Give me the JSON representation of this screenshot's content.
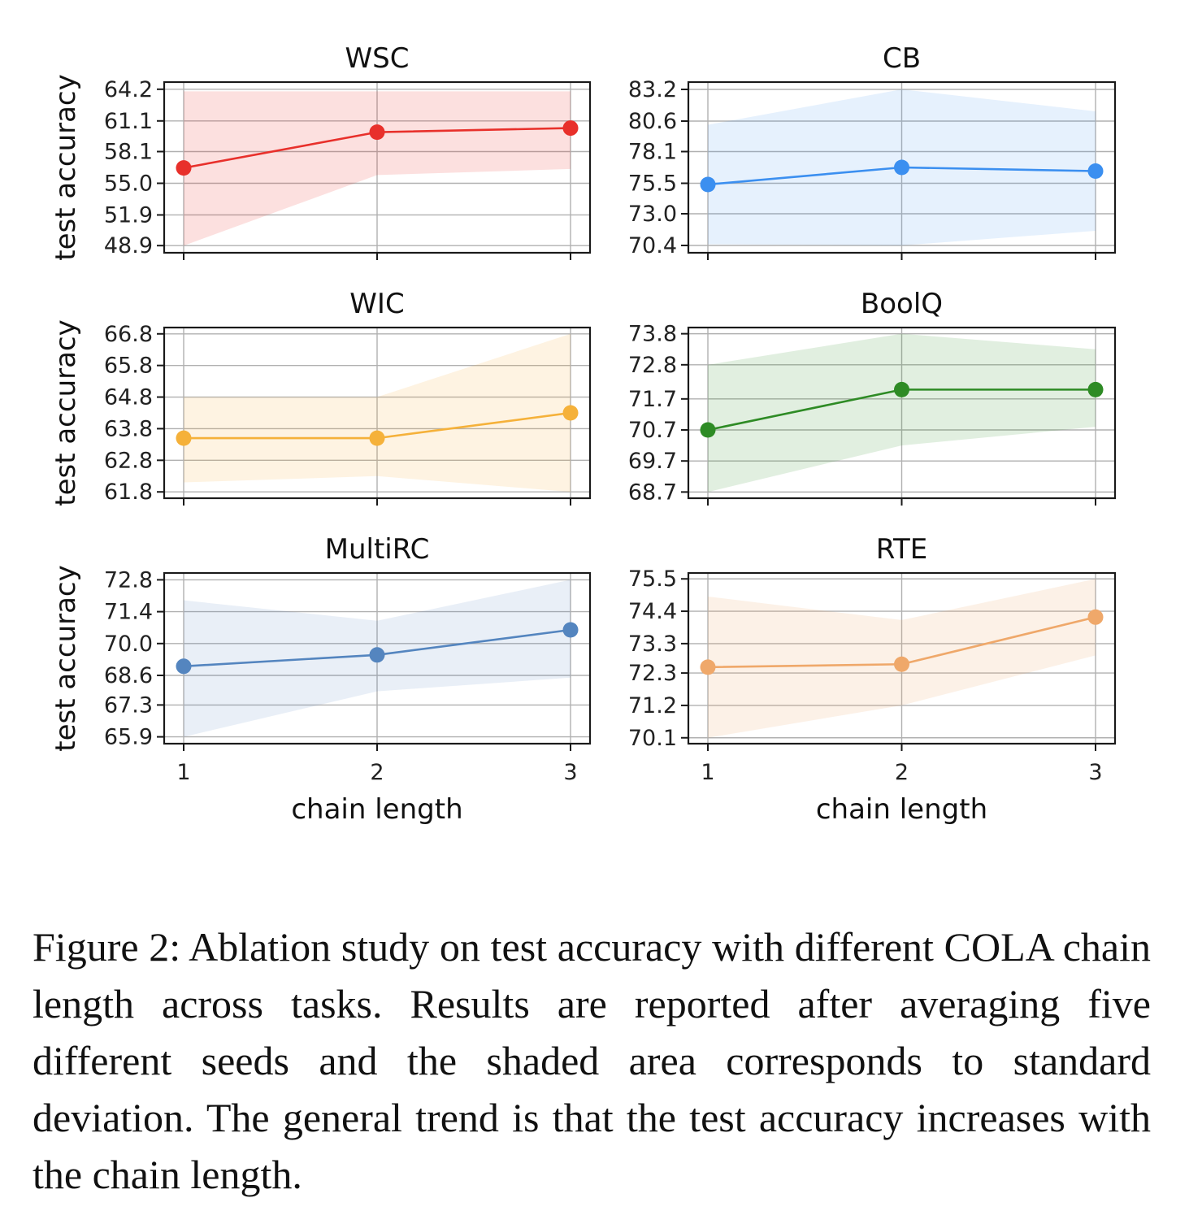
{
  "chart_data": [
    {
      "type": "line",
      "title": "WSC",
      "xlabel": "",
      "ylabel": "test accuracy",
      "x": [
        1,
        2,
        3
      ],
      "yticks": [
        "64.2",
        "61.1",
        "58.1",
        "55.0",
        "51.9",
        "48.9"
      ],
      "ylim": [
        48.2,
        64.9
      ],
      "series": [
        {
          "values": [
            56.5,
            60.0,
            60.4
          ],
          "lower": [
            48.9,
            55.8,
            56.4
          ],
          "upper": [
            64.0,
            64.0,
            64.0
          ]
        }
      ],
      "color": "#e8302b",
      "fill": "rgba(232,48,43,0.15)"
    },
    {
      "type": "line",
      "title": "CB",
      "xlabel": "",
      "ylabel": "",
      "x": [
        1,
        2,
        3
      ],
      "yticks": [
        "83.2",
        "80.6",
        "78.1",
        "75.5",
        "73.0",
        "70.4"
      ],
      "ylim": [
        69.8,
        83.8
      ],
      "series": [
        {
          "values": [
            75.4,
            76.8,
            76.5
          ],
          "lower": [
            70.5,
            70.4,
            71.6
          ],
          "upper": [
            80.3,
            83.2,
            81.4
          ]
        }
      ],
      "color": "#3b8ff0",
      "fill": "rgba(59,143,240,0.13)"
    },
    {
      "type": "line",
      "title": "WIC",
      "xlabel": "",
      "ylabel": "test accuracy",
      "x": [
        1,
        2,
        3
      ],
      "yticks": [
        "66.8",
        "65.8",
        "64.8",
        "63.8",
        "62.8",
        "61.8"
      ],
      "ylim": [
        61.6,
        67.0
      ],
      "series": [
        {
          "values": [
            63.5,
            63.5,
            64.3
          ],
          "lower": [
            62.1,
            62.3,
            61.8
          ],
          "upper": [
            64.8,
            64.8,
            66.8
          ]
        }
      ],
      "color": "#f5b13a",
      "fill": "rgba(245,177,58,0.15)"
    },
    {
      "type": "line",
      "title": "BoolQ",
      "xlabel": "",
      "ylabel": "",
      "x": [
        1,
        2,
        3
      ],
      "yticks": [
        "73.8",
        "72.8",
        "71.7",
        "70.7",
        "69.7",
        "68.7"
      ],
      "ylim": [
        68.5,
        74.0
      ],
      "series": [
        {
          "values": [
            70.7,
            72.0,
            72.0
          ],
          "lower": [
            68.7,
            70.2,
            70.8
          ],
          "upper": [
            72.8,
            73.8,
            73.3
          ]
        }
      ],
      "color": "#2e8b25",
      "fill": "rgba(46,139,37,0.14)"
    },
    {
      "type": "line",
      "title": "MultiRC",
      "xlabel": "chain length",
      "ylabel": "test accuracy",
      "x": [
        1,
        2,
        3
      ],
      "yticks": [
        "72.8",
        "71.4",
        "70.0",
        "68.6",
        "67.3",
        "65.9"
      ],
      "ylim": [
        65.6,
        73.1
      ],
      "series": [
        {
          "values": [
            69.0,
            69.5,
            70.6
          ],
          "lower": [
            65.9,
            67.9,
            68.5
          ],
          "upper": [
            71.9,
            71.0,
            72.8
          ]
        }
      ],
      "color": "#5485bf",
      "fill": "rgba(84,133,191,0.13)"
    },
    {
      "type": "line",
      "title": "RTE",
      "xlabel": "chain length",
      "ylabel": "",
      "x": [
        1,
        2,
        3
      ],
      "yticks": [
        "75.5",
        "74.4",
        "73.3",
        "72.3",
        "71.2",
        "70.1"
      ],
      "ylim": [
        69.9,
        75.7
      ],
      "series": [
        {
          "values": [
            72.5,
            72.6,
            74.2
          ],
          "lower": [
            70.1,
            71.2,
            72.9
          ],
          "upper": [
            74.9,
            74.1,
            75.5
          ]
        }
      ],
      "color": "#efa86a",
      "fill": "rgba(239,168,106,0.16)"
    }
  ],
  "caption": "Figure 2: Ablation study on test accuracy with different COLA chain length across tasks. Results are reported after averaging five different seeds and the shaded area corresponds to standard deviation. The general trend is that the test accuracy increases with the chain length."
}
